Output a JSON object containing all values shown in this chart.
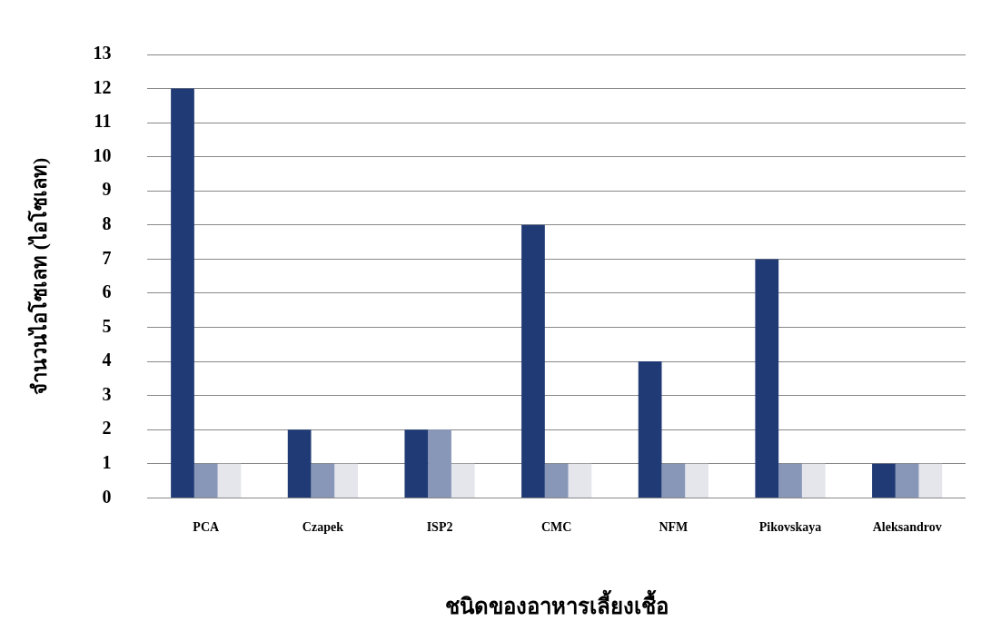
{
  "chart_data": {
    "type": "bar",
    "xlabel": "ชนิดของอาหารเลี้ยงเชื้อ",
    "ylabel": "จำนวนไอโซเลท (ไอโซเลท)",
    "categories": [
      "PCA",
      "Czapek",
      "ISP2",
      "CMC",
      "NFM",
      "Pikovskaya",
      "Aleksandrov"
    ],
    "series": [
      {
        "color": "#1f3a75",
        "values": [
          12,
          2,
          2,
          8,
          4,
          7,
          1
        ]
      },
      {
        "color": "#8896b8",
        "values": [
          1,
          1,
          2,
          1,
          1,
          1,
          1
        ]
      },
      {
        "color": "#e4e6ec",
        "values": [
          1,
          1,
          1,
          1,
          1,
          1,
          1
        ]
      }
    ],
    "ylim": [
      0,
      13
    ],
    "yticks": [
      0,
      1,
      2,
      3,
      4,
      5,
      6,
      7,
      8,
      9,
      10,
      11,
      12,
      13
    ],
    "grid": "y",
    "legend": false
  }
}
